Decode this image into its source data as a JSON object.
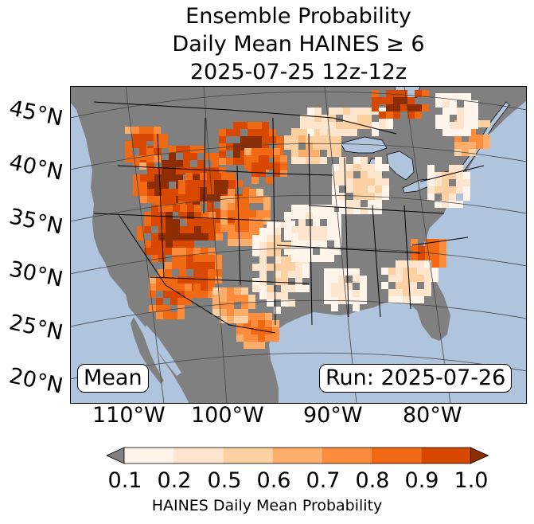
{
  "title": {
    "line1": "Ensemble Probability",
    "line2": "Daily Mean HAINES ≥ 6",
    "line3": "2025-07-25 12z-12z"
  },
  "map": {
    "region": "Contiguous United States",
    "ocean_color": "#b0c4de",
    "land_color": "#808080",
    "lat_labels": [
      "45°N",
      "40°N",
      "35°N",
      "30°N",
      "25°N",
      "20°N"
    ],
    "lon_labels": [
      "110°W",
      "100°W",
      "90°W",
      "80°W"
    ],
    "mean_label": "Mean",
    "run_label": "Run: 2025-07-26"
  },
  "colorbar": {
    "ticks": [
      "0.1",
      "0.2",
      "0.5",
      "0.6",
      "0.7",
      "0.8",
      "0.9",
      "1.0"
    ],
    "colors": [
      "#fff5eb",
      "#fee6ce",
      "#fdd0a2",
      "#fdae6b",
      "#fd8d3c",
      "#f16913",
      "#d94801",
      "#8c2d04"
    ],
    "under_color": "#808080",
    "label": "HAINES Daily Mean Probability"
  }
}
